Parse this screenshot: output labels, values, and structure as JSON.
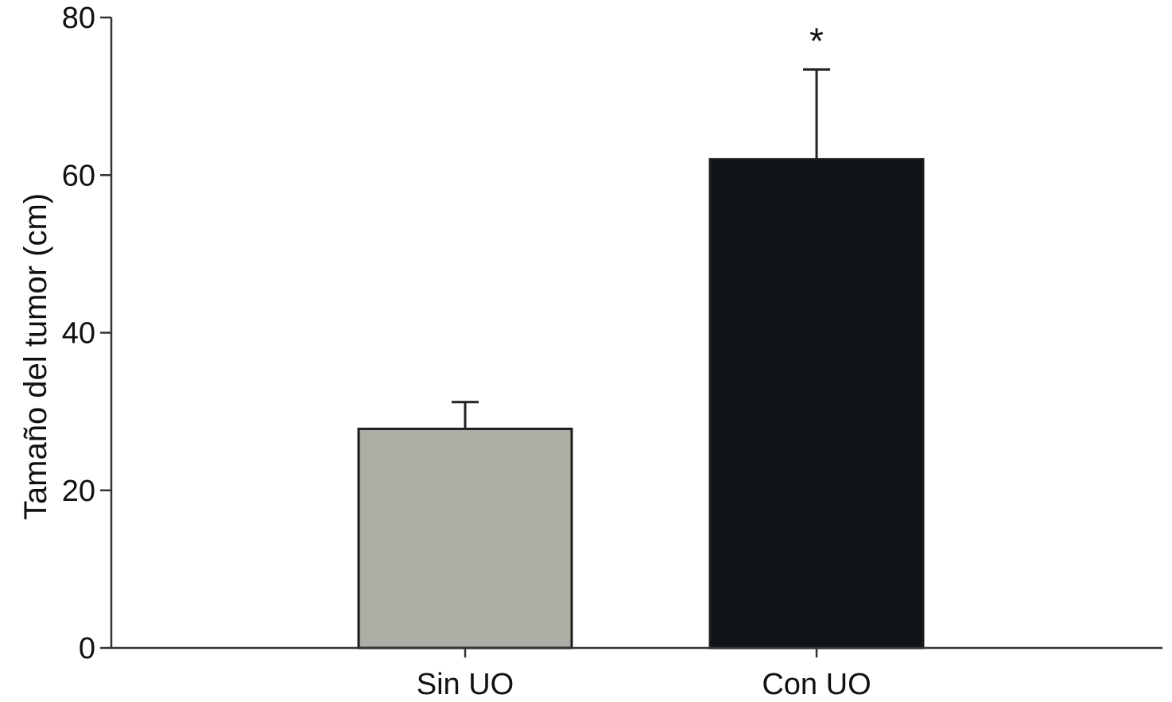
{
  "chart_data": {
    "type": "bar",
    "categories": [
      "Sin UO",
      "Con UO"
    ],
    "values": [
      27.8,
      62.0
    ],
    "error": [
      3.4,
      11.4
    ],
    "ylabel": "Tamaño del tumor (cm)",
    "ylim": [
      0,
      80
    ],
    "yticks": [
      0,
      20,
      40,
      60,
      80
    ],
    "ytick_labels": [
      "0",
      "20",
      "40",
      "60",
      "80"
    ],
    "bar_colors": [
      "#abaea4",
      "#101417"
    ],
    "grid": false,
    "legend": "none",
    "annotations": [
      {
        "category": "Con UO",
        "text": "*"
      }
    ]
  }
}
